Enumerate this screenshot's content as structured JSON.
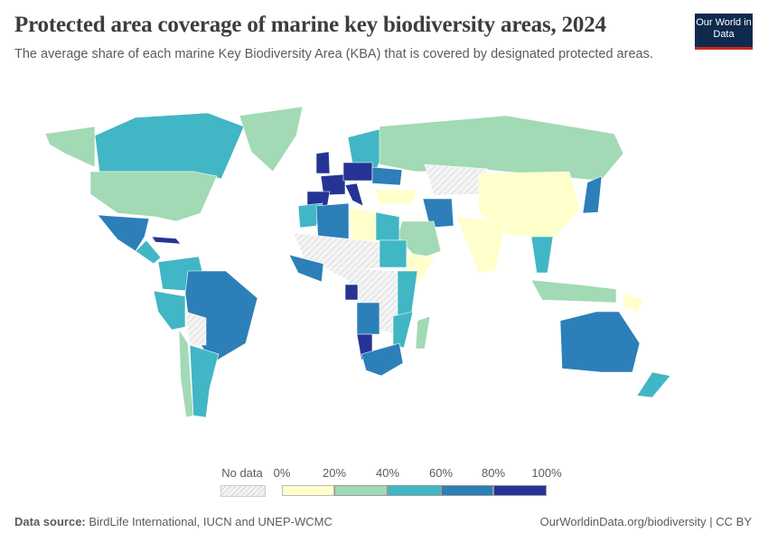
{
  "header": {
    "title": "Protected area coverage of marine key biodiversity areas, 2024",
    "subtitle": "The average share of each marine Key Biodiversity Area (KBA) that is covered by designated protected areas.",
    "logo_text": "Our World in Data"
  },
  "legend": {
    "no_data_label": "No data",
    "ticks": [
      "0%",
      "20%",
      "40%",
      "60%",
      "80%",
      "100%"
    ],
    "bins": [
      {
        "range": "0-20%",
        "color": "#ffffcc"
      },
      {
        "range": "20-40%",
        "color": "#a1dab4"
      },
      {
        "range": "40-60%",
        "color": "#41b6c4"
      },
      {
        "range": "60-80%",
        "color": "#2c7fb8"
      },
      {
        "range": "80-100%",
        "color": "#253494"
      }
    ],
    "no_data_color": "hatched"
  },
  "footer": {
    "source_label": "Data source:",
    "source_text": "BirdLife International, IUCN and UNEP-WCMC",
    "link": "OurWorldinData.org/biodiversity | CC BY"
  }
}
